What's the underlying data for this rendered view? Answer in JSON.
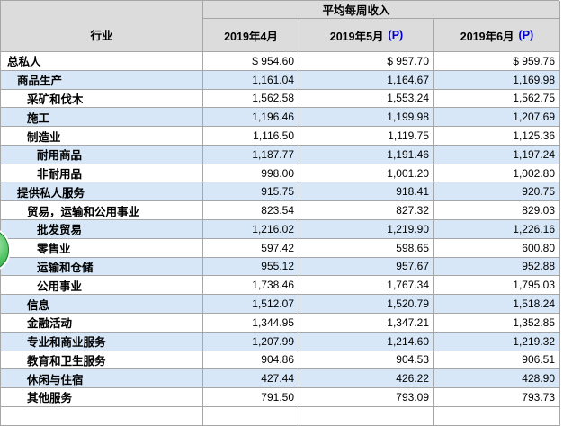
{
  "chart_data": {
    "type": "table",
    "title": "平均每周收入",
    "row_header_label": "行业",
    "preliminary_marker": "P",
    "paren_open": "(",
    "paren_close": ")",
    "columns": [
      {
        "label": "2019年4月",
        "preliminary": false
      },
      {
        "label": "2019年5月",
        "preliminary": true
      },
      {
        "label": "2019年6月",
        "preliminary": true
      }
    ],
    "rows": [
      {
        "label": "总私人",
        "indent": 0,
        "values": [
          "$ 954.60",
          "$ 957.70",
          "$ 959.76"
        ]
      },
      {
        "label": "商品生产",
        "indent": 1,
        "values": [
          "1,161.04",
          "1,164.67",
          "1,169.98"
        ]
      },
      {
        "label": "采矿和伐木",
        "indent": 2,
        "values": [
          "1,562.58",
          "1,553.24",
          "1,562.75"
        ]
      },
      {
        "label": "施工",
        "indent": 2,
        "values": [
          "1,196.46",
          "1,199.98",
          "1,207.69"
        ]
      },
      {
        "label": "制造业",
        "indent": 2,
        "values": [
          "1,116.50",
          "1,119.75",
          "1,125.36"
        ]
      },
      {
        "label": "耐用商品",
        "indent": 3,
        "values": [
          "1,187.77",
          "1,191.46",
          "1,197.24"
        ]
      },
      {
        "label": "非耐用品",
        "indent": 3,
        "values": [
          "998.00",
          "1,001.20",
          "1,002.80"
        ]
      },
      {
        "label": "提供私人服务",
        "indent": 1,
        "values": [
          "915.75",
          "918.41",
          "920.75"
        ]
      },
      {
        "label": "贸易，运输和公用事业",
        "indent": 2,
        "values": [
          "823.54",
          "827.32",
          "829.03"
        ]
      },
      {
        "label": "批发贸易",
        "indent": 3,
        "values": [
          "1,216.02",
          "1,219.90",
          "1,226.16"
        ]
      },
      {
        "label": "零售业",
        "indent": 3,
        "values": [
          "597.42",
          "598.65",
          "600.80"
        ]
      },
      {
        "label": "运输和仓储",
        "indent": 3,
        "values": [
          "955.12",
          "957.67",
          "952.88"
        ]
      },
      {
        "label": "公用事业",
        "indent": 3,
        "values": [
          "1,738.46",
          "1,767.34",
          "1,795.03"
        ]
      },
      {
        "label": "信息",
        "indent": 2,
        "values": [
          "1,512.07",
          "1,520.79",
          "1,518.24"
        ]
      },
      {
        "label": "金融活动",
        "indent": 2,
        "values": [
          "1,344.95",
          "1,347.21",
          "1,352.85"
        ]
      },
      {
        "label": "专业和商业服务",
        "indent": 2,
        "values": [
          "1,207.99",
          "1,214.60",
          "1,219.32"
        ]
      },
      {
        "label": "教育和卫生服务",
        "indent": 2,
        "values": [
          "904.86",
          "904.53",
          "906.51"
        ]
      },
      {
        "label": "休闲与住宿",
        "indent": 2,
        "values": [
          "427.44",
          "426.22",
          "428.90"
        ]
      },
      {
        "label": "其他服务",
        "indent": 2,
        "values": [
          "791.50",
          "793.09",
          "793.73"
        ]
      }
    ]
  },
  "colors": {
    "header_bg": "#dcdcdc",
    "row_alt_blue": "#d7e7f7",
    "border": "#a6a6a6",
    "link_blue": "#0000cc",
    "float_button_green": "#3fae4e"
  }
}
